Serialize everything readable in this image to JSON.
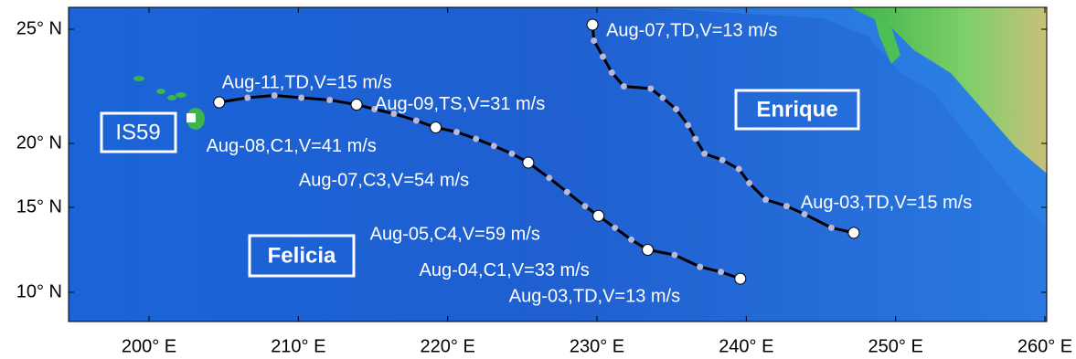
{
  "map": {
    "xticks": [
      {
        "value": 200,
        "label": "200° E"
      },
      {
        "value": 210,
        "label": "210° E"
      },
      {
        "value": 220,
        "label": "220° E"
      },
      {
        "value": 230,
        "label": "230° E"
      },
      {
        "value": 240,
        "label": "240° E"
      },
      {
        "value": 250,
        "label": "250° E"
      },
      {
        "value": 260,
        "label": "260° E"
      }
    ],
    "yticks": [
      {
        "value": 25,
        "label": "25° N"
      },
      {
        "value": 20,
        "label": "20° N"
      },
      {
        "value": 15,
        "label": "15° N"
      },
      {
        "value": 10,
        "label": "10° N"
      }
    ],
    "station": "IS59",
    "tracks": [
      {
        "name": "Felicia",
        "lon": [
          239.6,
          238.3,
          236.9,
          235.2,
          233.4,
          232.3,
          231.2,
          230.1,
          229.2,
          228.0,
          226.8,
          225.4,
          224.3,
          223.1,
          221.9,
          220.6,
          219.2,
          217.9,
          216.4,
          215.1,
          213.9,
          212.1,
          210.2,
          208.4,
          206.6,
          204.7
        ],
        "lat": [
          10.8,
          11.2,
          11.5,
          12.2,
          12.5,
          13.1,
          13.8,
          14.5,
          15.1,
          16.2,
          17.3,
          18.5,
          19.2,
          19.8,
          20.2,
          20.5,
          20.7,
          21.0,
          21.3,
          21.5,
          21.7,
          21.9,
          22.0,
          22.1,
          22.0,
          21.8
        ],
        "labels": [
          "Aug-03,TD,V=13 m/s",
          null,
          null,
          null,
          "Aug-04,C1,V=33 m/s",
          null,
          null,
          "Aug-05,C4,V=59 m/s",
          null,
          null,
          null,
          "Aug-07,C3,V=54 m/s",
          null,
          null,
          null,
          null,
          "Aug-08,C1,V=41 m/s",
          null,
          null,
          null,
          "Aug-09,TS,V=31 m/s",
          null,
          null,
          null,
          null,
          "Aug-11,TD,V=15 m/s"
        ]
      },
      {
        "name": "Enrique",
        "lon": [
          247.2,
          245.7,
          243.9,
          242.7,
          241.3,
          240.2,
          239.5,
          238.4,
          237.2,
          236.6,
          236.1,
          235.3,
          234.4,
          233.6,
          231.8,
          231.0,
          230.4,
          229.8,
          229.7
        ],
        "lat": [
          13.5,
          13.8,
          14.6,
          15.1,
          15.6,
          16.9,
          18.0,
          18.7,
          19.2,
          20.2,
          20.8,
          21.5,
          22.0,
          22.4,
          22.5,
          23.1,
          23.8,
          24.5,
          25.2
        ],
        "labels": [
          "Aug-03,TD,V=15 m/s",
          null,
          null,
          null,
          null,
          null,
          null,
          null,
          null,
          null,
          null,
          null,
          null,
          null,
          null,
          null,
          null,
          null,
          "Aug-07,TD,V=13 m/s"
        ]
      }
    ]
  }
}
